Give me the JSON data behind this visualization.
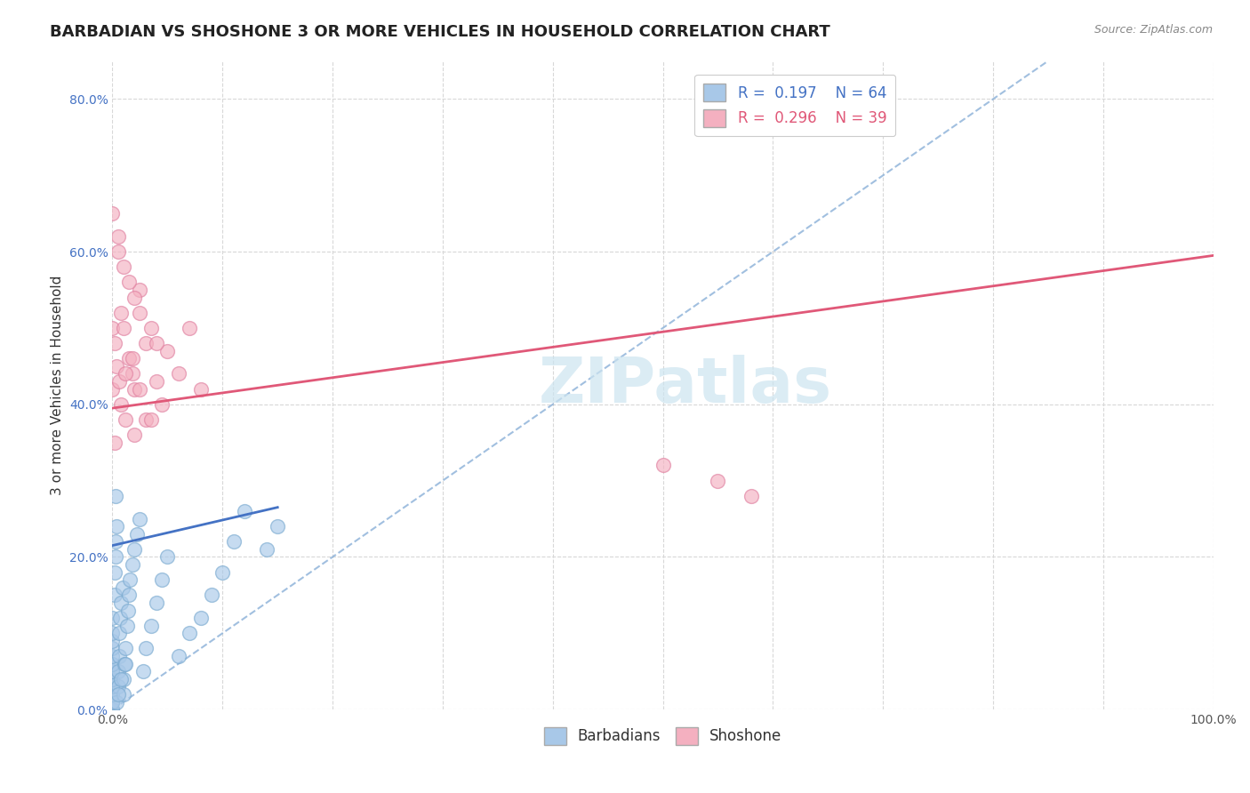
{
  "title": "BARBADIAN VS SHOSHONE 3 OR MORE VEHICLES IN HOUSEHOLD CORRELATION CHART",
  "source": "Source: ZipAtlas.com",
  "ylabel": "3 or more Vehicles in Household",
  "xlim": [
    0.0,
    1.0
  ],
  "ylim": [
    0.0,
    0.85
  ],
  "x_tick_labels": [
    "0.0%",
    "",
    "",
    "",
    "",
    "",
    "",
    "",
    "",
    "",
    "100.0%"
  ],
  "y_tick_labels": [
    "0.0%",
    "20.0%",
    "40.0%",
    "60.0%",
    "80.0%"
  ],
  "legend_labels": [
    "Barbadians",
    "Shoshone"
  ],
  "barbadian_color": "#a8c8e8",
  "shoshone_color": "#f4b0c0",
  "barbadian_edge_color": "#7aaad0",
  "shoshone_edge_color": "#e080a0",
  "barbadian_line_color": "#4472c4",
  "shoshone_line_color": "#e05878",
  "diagonal_color": "#8ab0d8",
  "R_barbadian": 0.197,
  "N_barbadian": 64,
  "R_shoshone": 0.296,
  "N_shoshone": 39,
  "shoshone_line_x0": 0.0,
  "shoshone_line_y0": 0.395,
  "shoshone_line_x1": 1.0,
  "shoshone_line_y1": 0.595,
  "barbadian_line_x0": 0.0,
  "barbadian_line_y0": 0.215,
  "barbadian_line_x1": 0.15,
  "barbadian_line_y1": 0.265,
  "diagonal_line_x0": 0.0,
  "diagonal_line_y0": 0.0,
  "diagonal_line_x1": 0.85,
  "diagonal_line_y1": 0.85,
  "watermark": "ZIPatlas",
  "watermark_color": "#cce4f0",
  "background_color": "#ffffff",
  "grid_color": "#d8d8d8",
  "title_fontsize": 13,
  "axis_label_fontsize": 11,
  "tick_fontsize": 10,
  "legend_fontsize": 12,
  "source_fontsize": 9,
  "barbadian_scatter_x": [
    0.0,
    0.0,
    0.0,
    0.0,
    0.0,
    0.0,
    0.0,
    0.0,
    0.0,
    0.0,
    0.0,
    0.0,
    0.0,
    0.0,
    0.0,
    0.0,
    0.0,
    0.0,
    0.0,
    0.0,
    0.002,
    0.002,
    0.003,
    0.003,
    0.004,
    0.004,
    0.005,
    0.005,
    0.006,
    0.006,
    0.007,
    0.008,
    0.009,
    0.01,
    0.01,
    0.011,
    0.012,
    0.013,
    0.014,
    0.015,
    0.016,
    0.018,
    0.02,
    0.022,
    0.025,
    0.028,
    0.03,
    0.035,
    0.04,
    0.045,
    0.05,
    0.06,
    0.07,
    0.08,
    0.09,
    0.1,
    0.11,
    0.12,
    0.14,
    0.15,
    0.003,
    0.005,
    0.008,
    0.012
  ],
  "barbadian_scatter_y": [
    0.0,
    0.0,
    0.0,
    0.01,
    0.01,
    0.02,
    0.02,
    0.03,
    0.03,
    0.04,
    0.04,
    0.05,
    0.05,
    0.06,
    0.06,
    0.07,
    0.08,
    0.09,
    0.1,
    0.12,
    0.15,
    0.18,
    0.2,
    0.22,
    0.24,
    0.01,
    0.03,
    0.05,
    0.07,
    0.1,
    0.12,
    0.14,
    0.16,
    0.02,
    0.04,
    0.06,
    0.08,
    0.11,
    0.13,
    0.15,
    0.17,
    0.19,
    0.21,
    0.23,
    0.25,
    0.05,
    0.08,
    0.11,
    0.14,
    0.17,
    0.2,
    0.07,
    0.1,
    0.12,
    0.15,
    0.18,
    0.22,
    0.26,
    0.21,
    0.24,
    0.28,
    0.02,
    0.04,
    0.06
  ],
  "shoshone_scatter_x": [
    0.0,
    0.0,
    0.0,
    0.002,
    0.004,
    0.006,
    0.008,
    0.01,
    0.012,
    0.015,
    0.018,
    0.02,
    0.025,
    0.03,
    0.035,
    0.04,
    0.045,
    0.05,
    0.06,
    0.07,
    0.08,
    0.01,
    0.015,
    0.02,
    0.025,
    0.03,
    0.04,
    0.005,
    0.008,
    0.012,
    0.018,
    0.025,
    0.035,
    0.5,
    0.55,
    0.58,
    0.002,
    0.005,
    0.02
  ],
  "shoshone_scatter_y": [
    0.42,
    0.5,
    0.65,
    0.48,
    0.45,
    0.43,
    0.52,
    0.5,
    0.38,
    0.46,
    0.44,
    0.42,
    0.55,
    0.48,
    0.5,
    0.43,
    0.4,
    0.47,
    0.44,
    0.5,
    0.42,
    0.58,
    0.56,
    0.54,
    0.52,
    0.38,
    0.48,
    0.6,
    0.4,
    0.44,
    0.46,
    0.42,
    0.38,
    0.32,
    0.3,
    0.28,
    0.35,
    0.62,
    0.36
  ]
}
